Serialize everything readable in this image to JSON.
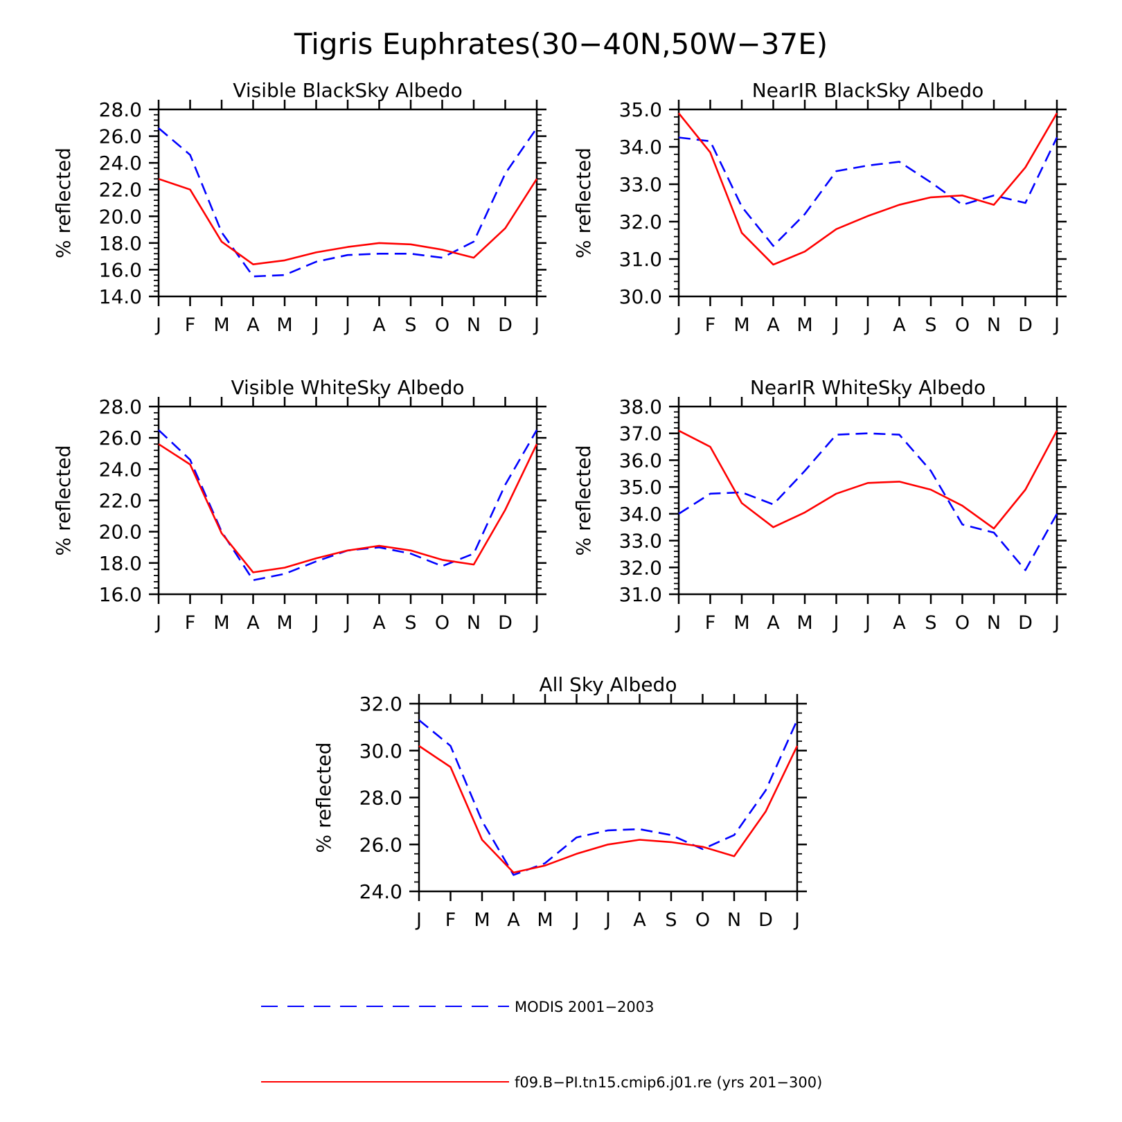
{
  "figure": {
    "title": "Tigris Euphrates(30−40N,50W−37E)"
  },
  "colors": {
    "model": "#ff0000",
    "obs": "#0000ff",
    "axis": "#000000"
  },
  "legend": {
    "items": [
      {
        "label": "MODIS 2001−2003",
        "color": "#0000ff",
        "style": "dashed"
      },
      {
        "label": "f09.B−PI.tn15.cmip6.j01.re (yrs 201−300)",
        "color": "#ff0000",
        "style": "solid"
      }
    ]
  },
  "chart_data": [
    {
      "type": "line",
      "title": "Visible BlackSky Albedo",
      "ylabel": "% reflected",
      "ylim": [
        14,
        28
      ],
      "yticks": [
        "14.0",
        "16.0",
        "18.0",
        "20.0",
        "22.0",
        "24.0",
        "26.0",
        "28.0"
      ],
      "x": [
        "J",
        "F",
        "M",
        "A",
        "M",
        "J",
        "J",
        "A",
        "S",
        "O",
        "N",
        "D",
        "J"
      ],
      "series": [
        {
          "name": "MODIS 2001−2003",
          "style": "dashed",
          "color": "#0000ff",
          "values": [
            26.6,
            24.6,
            18.8,
            15.5,
            15.6,
            16.6,
            17.1,
            17.2,
            17.2,
            16.9,
            18.1,
            23.2,
            26.6
          ]
        },
        {
          "name": "f09.B−PI.tn15.cmip6.j01.re (yrs 201−300)",
          "style": "solid",
          "color": "#ff0000",
          "values": [
            22.8,
            22.0,
            18.1,
            16.4,
            16.7,
            17.3,
            17.7,
            18.0,
            17.9,
            17.5,
            16.9,
            19.1,
            22.8
          ]
        }
      ]
    },
    {
      "type": "line",
      "title": "NearIR BlackSky Albedo",
      "ylabel": "% reflected",
      "ylim": [
        30,
        35
      ],
      "yticks": [
        "30.0",
        "31.0",
        "32.0",
        "33.0",
        "34.0",
        "35.0"
      ],
      "x": [
        "J",
        "F",
        "M",
        "A",
        "M",
        "J",
        "J",
        "A",
        "S",
        "O",
        "N",
        "D",
        "J"
      ],
      "series": [
        {
          "name": "MODIS 2001−2003",
          "style": "dashed",
          "color": "#0000ff",
          "values": [
            34.25,
            34.15,
            32.4,
            31.35,
            32.2,
            33.35,
            33.5,
            33.6,
            33.05,
            32.45,
            32.7,
            32.5,
            34.25
          ]
        },
        {
          "name": "f09.B−PI.tn15.cmip6.j01.re (yrs 201−300)",
          "style": "solid",
          "color": "#ff0000",
          "values": [
            34.9,
            33.85,
            31.7,
            30.85,
            31.2,
            31.8,
            32.15,
            32.45,
            32.65,
            32.7,
            32.45,
            33.45,
            34.9
          ]
        }
      ]
    },
    {
      "type": "line",
      "title": "Visible WhiteSky Albedo",
      "ylabel": "% reflected",
      "ylim": [
        16,
        28
      ],
      "yticks": [
        "16.0",
        "18.0",
        "20.0",
        "22.0",
        "24.0",
        "26.0",
        "28.0"
      ],
      "x": [
        "J",
        "F",
        "M",
        "A",
        "M",
        "J",
        "J",
        "A",
        "S",
        "O",
        "N",
        "D",
        "J"
      ],
      "series": [
        {
          "name": "MODIS 2001−2003",
          "style": "dashed",
          "color": "#0000ff",
          "values": [
            26.5,
            24.6,
            20.0,
            16.9,
            17.3,
            18.1,
            18.8,
            19.0,
            18.6,
            17.8,
            18.6,
            23.0,
            26.5
          ]
        },
        {
          "name": "f09.B−PI.tn15.cmip6.j01.re (yrs 201−300)",
          "style": "solid",
          "color": "#ff0000",
          "values": [
            25.6,
            24.3,
            19.9,
            17.4,
            17.7,
            18.3,
            18.8,
            19.1,
            18.8,
            18.2,
            17.9,
            21.4,
            25.6
          ]
        }
      ]
    },
    {
      "type": "line",
      "title": "NearIR WhiteSky Albedo",
      "ylabel": "% reflected",
      "ylim": [
        31,
        38
      ],
      "yticks": [
        "31.0",
        "32.0",
        "33.0",
        "34.0",
        "35.0",
        "36.0",
        "37.0",
        "38.0"
      ],
      "x": [
        "J",
        "F",
        "M",
        "A",
        "M",
        "J",
        "J",
        "A",
        "S",
        "O",
        "N",
        "D",
        "J"
      ],
      "series": [
        {
          "name": "MODIS 2001−2003",
          "style": "dashed",
          "color": "#0000ff",
          "values": [
            34.0,
            34.75,
            34.8,
            34.35,
            35.6,
            36.95,
            37.0,
            36.95,
            35.6,
            33.6,
            33.3,
            31.9,
            34.0
          ]
        },
        {
          "name": "f09.B−PI.tn15.cmip6.j01.re (yrs 201−300)",
          "style": "solid",
          "color": "#ff0000",
          "values": [
            37.1,
            36.5,
            34.4,
            33.5,
            34.05,
            34.75,
            35.15,
            35.2,
            34.9,
            34.3,
            33.45,
            34.9,
            37.1
          ]
        }
      ]
    },
    {
      "type": "line",
      "title": "All Sky Albedo",
      "ylabel": "% reflected",
      "ylim": [
        24,
        32
      ],
      "yticks": [
        "24.0",
        "26.0",
        "28.0",
        "30.0",
        "32.0"
      ],
      "x": [
        "J",
        "F",
        "M",
        "A",
        "M",
        "J",
        "J",
        "A",
        "S",
        "O",
        "N",
        "D",
        "J"
      ],
      "series": [
        {
          "name": "MODIS 2001−2003",
          "style": "dashed",
          "color": "#0000ff",
          "values": [
            31.3,
            30.2,
            27.0,
            24.7,
            25.2,
            26.3,
            26.6,
            26.65,
            26.4,
            25.8,
            26.4,
            28.3,
            31.3
          ]
        },
        {
          "name": "f09.B−PI.tn15.cmip6.j01.re (yrs 201−300)",
          "style": "solid",
          "color": "#ff0000",
          "values": [
            30.2,
            29.3,
            26.2,
            24.8,
            25.1,
            25.6,
            26.0,
            26.2,
            26.1,
            25.9,
            25.5,
            27.4,
            30.2
          ]
        }
      ]
    }
  ]
}
